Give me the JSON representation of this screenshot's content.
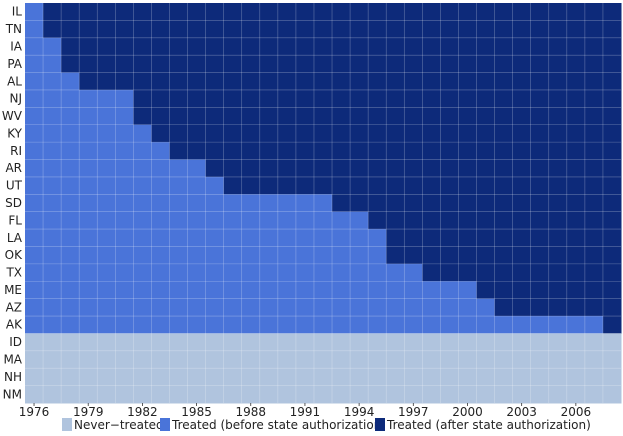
{
  "chart_data": {
    "type": "heatmap",
    "title": "",
    "xlabel": "",
    "ylabel": "",
    "x_start": 1976,
    "x_end": 2008,
    "x_tick_labels": [
      "1976",
      "1979",
      "1982",
      "1985",
      "1988",
      "1991",
      "1994",
      "1997",
      "2000",
      "2003",
      "2006"
    ],
    "units": [
      "IL",
      "TN",
      "IA",
      "PA",
      "AL",
      "NJ",
      "WV",
      "KY",
      "RI",
      "AR",
      "UT",
      "SD",
      "FL",
      "LA",
      "OK",
      "TX",
      "ME",
      "AZ",
      "AK",
      "ID",
      "MA",
      "NH",
      "NM"
    ],
    "first_treated_year": {
      "IL": 1977,
      "TN": 1977,
      "IA": 1978,
      "PA": 1978,
      "AL": 1979,
      "NJ": 1982,
      "WV": 1982,
      "KY": 1983,
      "RI": 1984,
      "AR": 1986,
      "UT": 1987,
      "SD": 1993,
      "FL": 1995,
      "LA": 1996,
      "OK": 1996,
      "TX": 1998,
      "ME": 2001,
      "AZ": 2002,
      "AK": 2008,
      "ID": null,
      "MA": null,
      "NH": null,
      "NM": null
    },
    "categories": [
      "Never−treated",
      "Treated (before state authorization)",
      "Treated (after state authorization)"
    ],
    "colors": {
      "never_treated": "#b0c4de",
      "before": "#4a74d9",
      "after": "#0d2a7a",
      "grid": "#ffffff"
    },
    "grid": true,
    "legend_position": "bottom"
  }
}
